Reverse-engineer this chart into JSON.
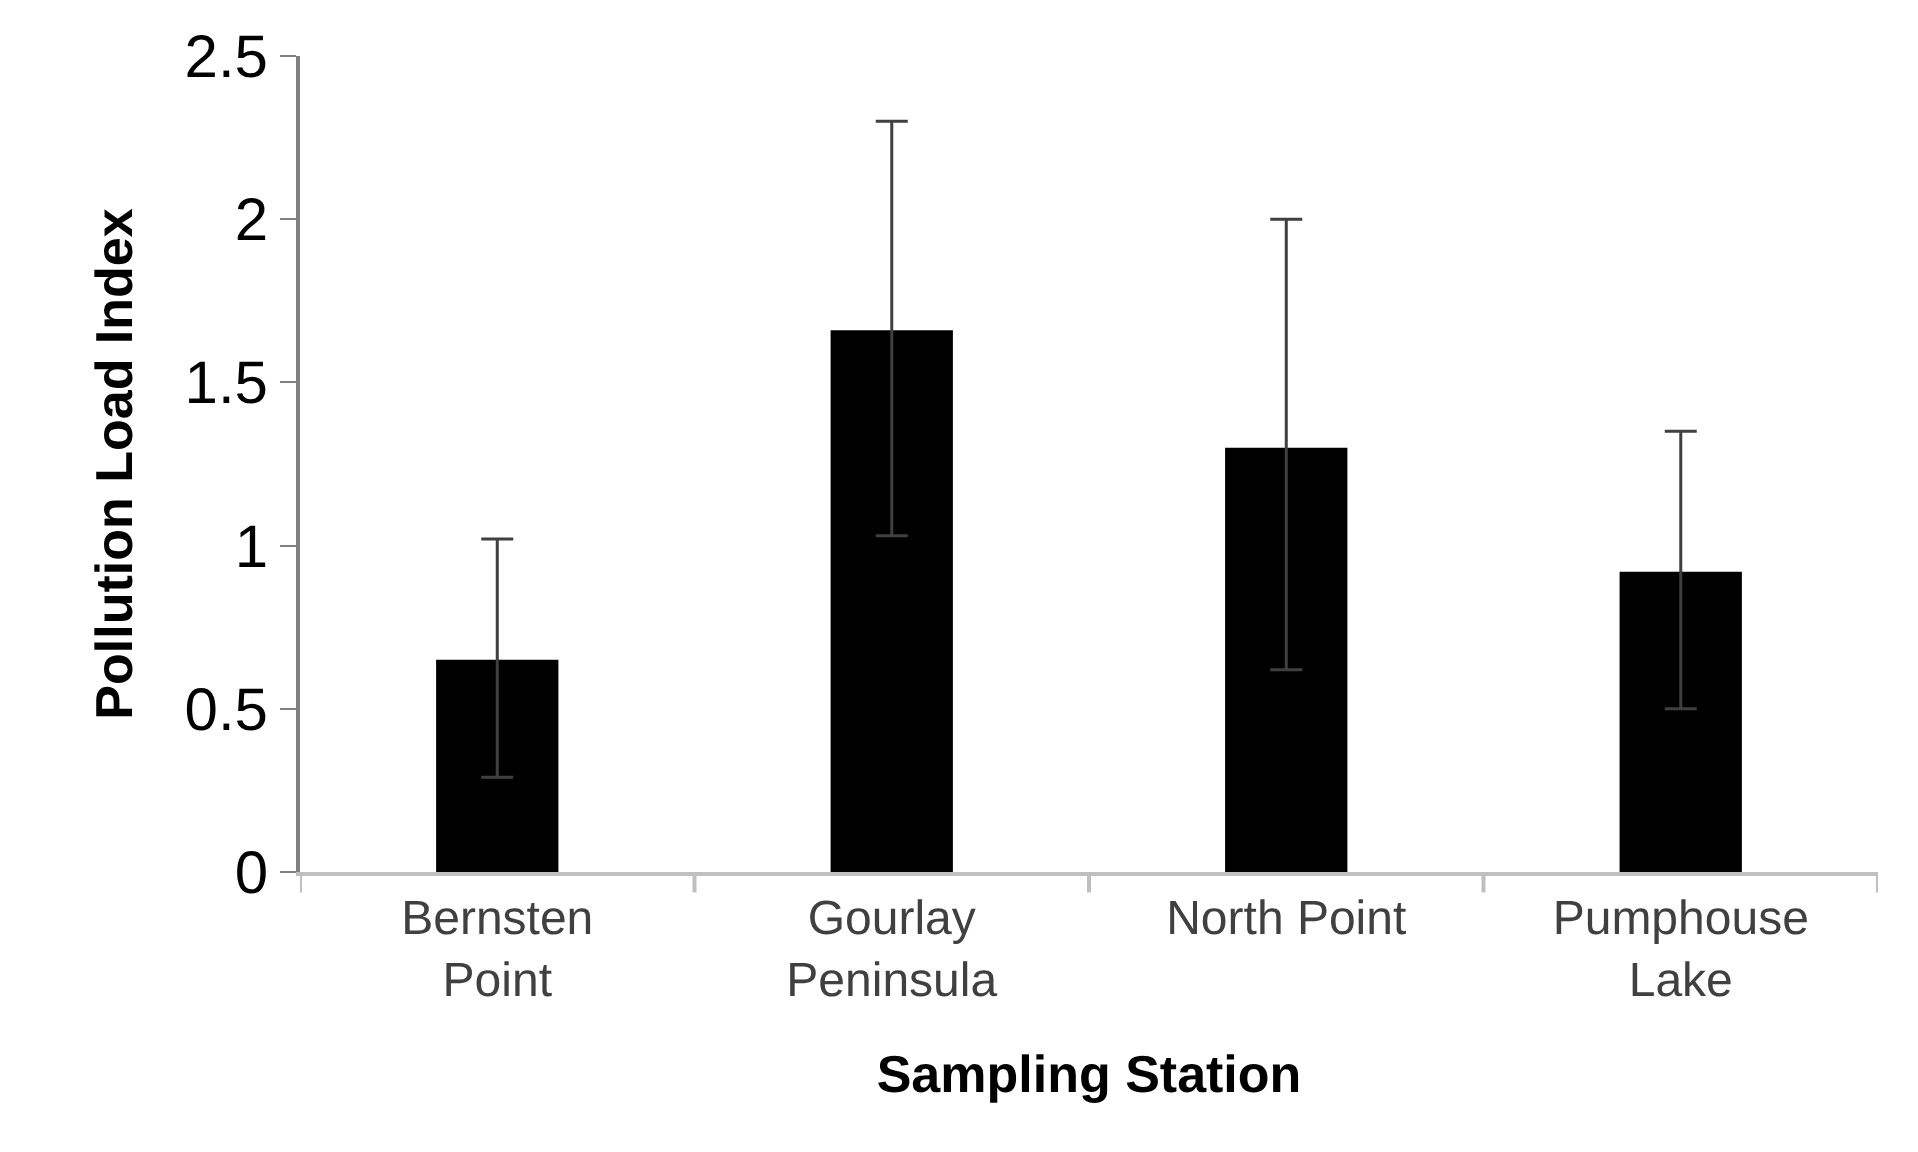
{
  "chart_data": {
    "type": "bar",
    "xlabel": "Sampling Station",
    "ylabel": "Pollution Load Index",
    "categories": [
      "Bernsten Point",
      "Gourlay Peninsula",
      "North Point",
      "Pumphouse Lake"
    ],
    "values": [
      0.65,
      1.66,
      1.3,
      0.92
    ],
    "errors": [
      [
        0.29,
        1.02
      ],
      [
        1.03,
        2.3
      ],
      [
        0.62,
        2.0
      ],
      [
        0.5,
        1.35
      ]
    ],
    "color": "#000000",
    "ylim": [
      0,
      2.5
    ],
    "yticks": [
      0,
      0.5,
      1,
      1.5,
      2,
      2.5
    ]
  }
}
